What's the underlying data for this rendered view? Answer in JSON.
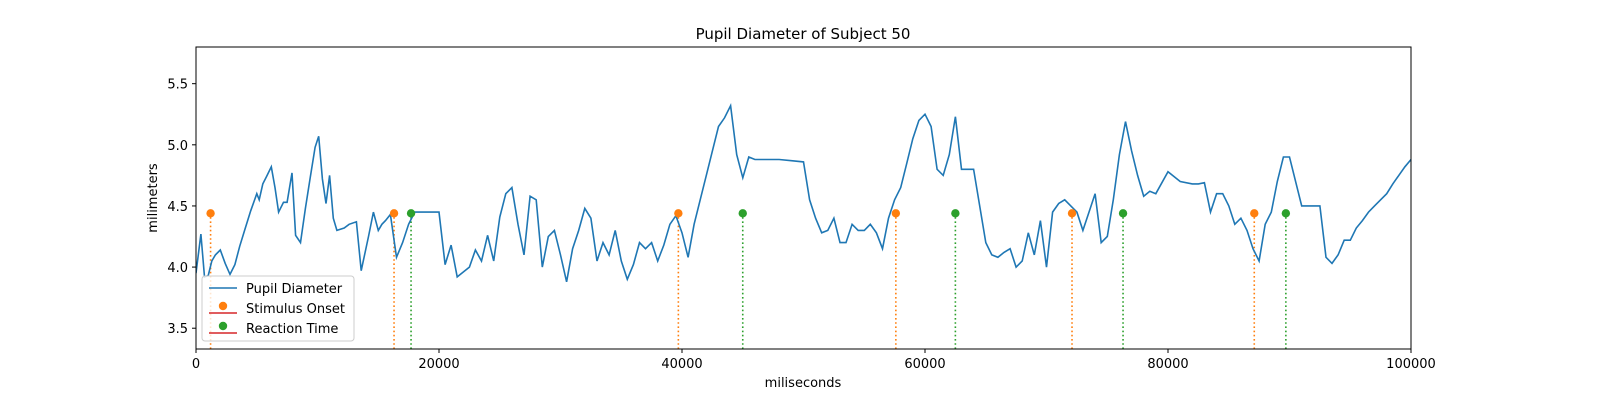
{
  "chart_data": {
    "type": "line",
    "title": "Pupil Diameter of Subject 50",
    "xlabel": "miliseconds",
    "ylabel": "milimeters",
    "xlim": [
      0,
      100000
    ],
    "ylim": [
      3.33,
      5.8
    ],
    "xticks": [
      0,
      20000,
      40000,
      60000,
      80000,
      100000
    ],
    "yticks": [
      3.5,
      4.0,
      4.5,
      5.0,
      5.5
    ],
    "grid": false,
    "legend_position": "lower-left",
    "legend": [
      "Pupil Diameter",
      "Stimulus Onset",
      "Reaction Time"
    ],
    "colors": {
      "line": "#1f77b4",
      "stimulus": "#ff7f0e",
      "reaction": "#2ca02c",
      "stem_base": "#d62728"
    },
    "series": [
      {
        "type": "line",
        "x": [
          0,
          400,
          700,
          1000,
          1300,
          1600,
          2000,
          2400,
          2800,
          3200,
          3600,
          4000,
          4500,
          5000,
          5200,
          5500,
          5800,
          6200,
          6500,
          6800,
          7200,
          7500,
          7900,
          8200,
          8600,
          9000,
          9400,
          9800,
          10100,
          10400,
          10700,
          11000,
          11300,
          11600,
          12200,
          12600,
          13200,
          13600,
          14200,
          14600,
          15000,
          15300,
          15600,
          16000,
          16500,
          17000,
          17500,
          18000,
          19000,
          20000,
          20500,
          21000,
          21500,
          22000,
          22500,
          23000,
          23500,
          24000,
          24500,
          25000,
          25500,
          26000,
          26500,
          27000,
          27500,
          28000,
          28500,
          29000,
          29500,
          30000,
          30500,
          31000,
          31500,
          32000,
          32500,
          33000,
          33500,
          34000,
          34500,
          35000,
          35500,
          36000,
          36500,
          37000,
          37500,
          38000,
          38500,
          39000,
          39500,
          40000,
          40500,
          41000,
          41500,
          42000,
          42500,
          43000,
          43500,
          44000,
          44500,
          45000,
          45500,
          46000,
          47000,
          48000,
          49000,
          50000,
          50500,
          51000,
          51500,
          52000,
          52500,
          53000,
          53500,
          54000,
          54500,
          55000,
          55500,
          56000,
          56500,
          57000,
          57500,
          58000,
          58500,
          59000,
          59500,
          60000,
          60500,
          61000,
          61500,
          62000,
          62500,
          63000,
          64000,
          65000,
          65500,
          66000,
          66500,
          67000,
          67500,
          68000,
          68500,
          69000,
          69500,
          70000,
          70500,
          71000,
          71500,
          72000,
          72500,
          73000,
          73500,
          74000,
          74500,
          75000,
          75500,
          76000,
          76500,
          77000,
          77500,
          78000,
          78500,
          79000,
          80000,
          81000,
          82000,
          82500,
          83000,
          83500,
          84000,
          84500,
          85000,
          85500,
          86000,
          86500,
          87000,
          87500,
          88000,
          88500,
          89000,
          89500,
          90000,
          91000,
          92000,
          92500,
          93000,
          93500,
          94000,
          94500,
          95000,
          95500,
          96000,
          96500,
          97000,
          97500,
          98000,
          98500,
          99000,
          99500,
          100000
        ],
        "y": [
          3.95,
          4.27,
          3.92,
          3.93,
          4.05,
          4.1,
          4.14,
          4.03,
          3.94,
          4.02,
          4.17,
          4.3,
          4.46,
          4.6,
          4.55,
          4.68,
          4.74,
          4.82,
          4.65,
          4.45,
          4.53,
          4.53,
          4.77,
          4.26,
          4.2,
          4.48,
          4.73,
          4.98,
          5.07,
          4.72,
          4.52,
          4.75,
          4.4,
          4.3,
          4.32,
          4.35,
          4.37,
          3.97,
          4.25,
          4.45,
          4.3,
          4.35,
          4.38,
          4.43,
          4.08,
          4.2,
          4.35,
          4.45,
          4.45,
          4.45,
          4.02,
          4.18,
          3.92,
          3.96,
          4.0,
          4.14,
          4.05,
          4.26,
          4.05,
          4.41,
          4.6,
          4.65,
          4.35,
          4.1,
          4.58,
          4.55,
          4.0,
          4.25,
          4.3,
          4.1,
          3.88,
          4.15,
          4.3,
          4.48,
          4.4,
          4.05,
          4.2,
          4.1,
          4.3,
          4.05,
          3.9,
          4.02,
          4.2,
          4.15,
          4.2,
          4.05,
          4.18,
          4.35,
          4.42,
          4.28,
          4.08,
          4.35,
          4.55,
          4.75,
          4.95,
          5.15,
          5.22,
          5.32,
          4.92,
          4.73,
          4.9,
          4.88,
          4.88,
          4.88,
          4.87,
          4.86,
          4.55,
          4.4,
          4.28,
          4.3,
          4.4,
          4.2,
          4.2,
          4.35,
          4.3,
          4.3,
          4.35,
          4.28,
          4.15,
          4.4,
          4.55,
          4.65,
          4.85,
          5.05,
          5.2,
          5.25,
          5.15,
          4.8,
          4.75,
          4.92,
          5.23,
          4.8,
          4.8,
          4.2,
          4.1,
          4.08,
          4.12,
          4.15,
          4.0,
          4.05,
          4.28,
          4.1,
          4.38,
          4.0,
          4.45,
          4.52,
          4.55,
          4.5,
          4.45,
          4.3,
          4.45,
          4.6,
          4.2,
          4.25,
          4.55,
          4.92,
          5.19,
          4.95,
          4.75,
          4.58,
          4.62,
          4.6,
          4.78,
          4.7,
          4.68,
          4.68,
          4.69,
          4.45,
          4.6,
          4.6,
          4.5,
          4.35,
          4.4,
          4.3,
          4.15,
          4.05,
          4.35,
          4.45,
          4.7,
          4.9,
          4.9,
          4.5,
          4.5,
          4.5,
          4.08,
          4.03,
          4.1,
          4.22,
          4.22,
          4.32,
          4.38,
          4.45,
          4.5,
          4.55,
          4.6,
          4.68,
          4.75,
          4.82,
          4.88
        ]
      },
      {
        "type": "stem",
        "x": [
          1200,
          16300,
          39700,
          57600,
          72100,
          87100
        ],
        "y": [
          4.44,
          4.44,
          4.44,
          4.44,
          4.44,
          4.44
        ]
      },
      {
        "type": "stem",
        "x": [
          17700,
          45000,
          62500,
          76300,
          89700
        ],
        "y": [
          4.44,
          4.44,
          4.44,
          4.44,
          4.44
        ]
      }
    ]
  }
}
